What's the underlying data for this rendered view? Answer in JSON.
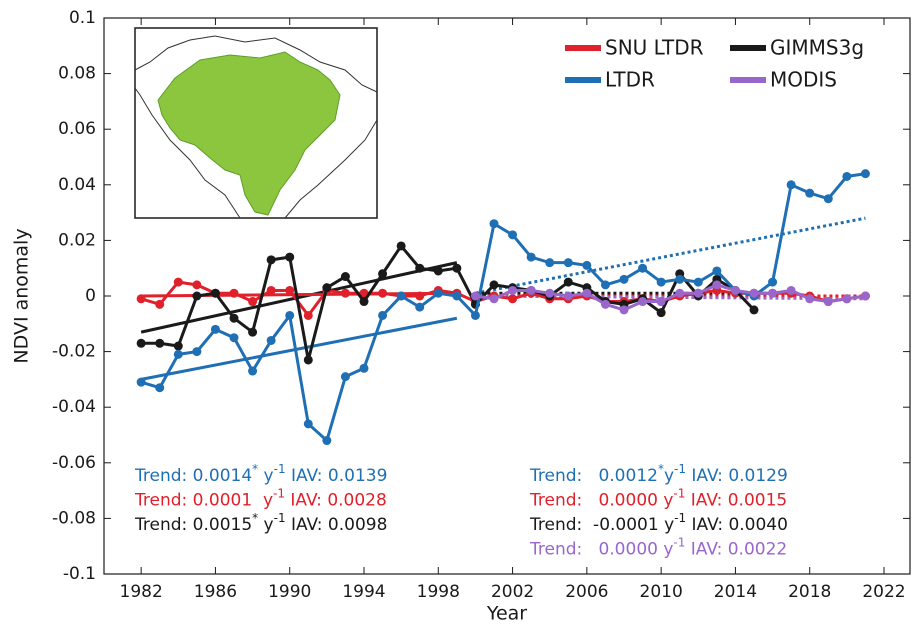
{
  "chart_data": {
    "type": "line",
    "x_label": "Year",
    "y_label": "NDVI anomaly",
    "x": [
      1982,
      1983,
      1984,
      1985,
      1986,
      1987,
      1988,
      1989,
      1990,
      1991,
      1992,
      1993,
      1994,
      1995,
      1996,
      1997,
      1998,
      1999,
      2000,
      2001,
      2002,
      2003,
      2004,
      2005,
      2006,
      2007,
      2008,
      2009,
      2010,
      2011,
      2012,
      2013,
      2014,
      2015,
      2016,
      2017,
      2018,
      2019,
      2020,
      2021
    ],
    "xlim": [
      1980,
      2023.4
    ],
    "xticks": [
      1982,
      1986,
      1990,
      1994,
      1998,
      2002,
      2006,
      2010,
      2014,
      2018,
      2022
    ],
    "ylim": [
      -0.1,
      0.1
    ],
    "yticks": [
      -0.1,
      -0.08,
      -0.06,
      -0.04,
      -0.02,
      0,
      0.02,
      0.04,
      0.06,
      0.08,
      0.1
    ],
    "grid": false,
    "legend_position": "upper right",
    "series": [
      {
        "name": "SNU LTDR",
        "color": "#e0202a",
        "values": [
          -0.001,
          -0.003,
          0.005,
          0.004,
          0.001,
          0.001,
          -0.002,
          0.002,
          0.002,
          -0.007,
          0.002,
          0.001,
          0.001,
          0.001,
          0.0,
          0.0,
          0.002,
          0.001,
          -0.002,
          0.0,
          -0.001,
          0.001,
          -0.001,
          -0.001,
          0.0,
          -0.002,
          -0.002,
          -0.001,
          -0.002,
          0.0,
          0.001,
          0.002,
          0.001,
          0.001,
          0.001,
          0.001,
          0.0,
          -0.002,
          -0.001,
          0.0
        ]
      },
      {
        "name": "GIMMS3g",
        "color": "#1a1a1a",
        "values": [
          -0.017,
          -0.017,
          -0.018,
          0.0,
          0.001,
          -0.008,
          -0.013,
          0.013,
          0.014,
          -0.023,
          0.003,
          0.007,
          -0.002,
          0.008,
          0.018,
          0.01,
          0.009,
          0.01,
          -0.003,
          0.004,
          0.003,
          0.002,
          0.0,
          0.005,
          0.003,
          -0.002,
          -0.003,
          -0.001,
          -0.006,
          0.008,
          0.0,
          0.006,
          0.002,
          -0.005,
          null,
          null,
          null,
          null,
          null,
          null
        ]
      },
      {
        "name": "LTDR",
        "color": "#1f6fb5",
        "values": [
          -0.031,
          -0.033,
          -0.021,
          -0.02,
          -0.012,
          -0.015,
          -0.027,
          -0.016,
          -0.007,
          -0.046,
          -0.052,
          -0.029,
          -0.026,
          -0.007,
          0.0,
          -0.004,
          0.001,
          0.0,
          -0.007,
          0.026,
          0.022,
          0.014,
          0.012,
          0.012,
          0.011,
          0.004,
          0.006,
          0.01,
          0.005,
          0.006,
          0.005,
          0.009,
          0.002,
          0.0,
          0.005,
          0.04,
          0.037,
          0.035,
          0.043,
          0.044
        ]
      },
      {
        "name": "MODIS",
        "color": "#9966cc",
        "values": [
          null,
          null,
          null,
          null,
          null,
          null,
          null,
          null,
          null,
          null,
          null,
          null,
          null,
          null,
          null,
          null,
          null,
          null,
          0.0,
          -0.001,
          0.002,
          0.002,
          0.001,
          0.0,
          0.001,
          -0.003,
          -0.005,
          -0.002,
          -0.002,
          0.001,
          0.001,
          0.004,
          0.002,
          0.001,
          0.001,
          0.002,
          -0.001,
          -0.002,
          -0.001,
          0.0
        ]
      }
    ],
    "trends": [
      {
        "color": "#1f6fb5",
        "style": "solid",
        "x": [
          1982,
          1999
        ],
        "y": [
          -0.03,
          -0.008
        ]
      },
      {
        "color": "#1a1a1a",
        "style": "solid",
        "x": [
          1982,
          1999
        ],
        "y": [
          -0.013,
          0.012
        ]
      },
      {
        "color": "#e0202a",
        "style": "solid",
        "x": [
          1982,
          1999
        ],
        "y": [
          0.0,
          0.001
        ]
      },
      {
        "color": "#1f6fb5",
        "style": "dotted",
        "x": [
          2000,
          2021
        ],
        "y": [
          0.001,
          0.028
        ]
      },
      {
        "color": "#1a1a1a",
        "style": "dotted",
        "x": [
          2000,
          2015
        ],
        "y": [
          0.001,
          0.001
        ]
      },
      {
        "color": "#e0202a",
        "style": "dotted",
        "x": [
          2000,
          2021
        ],
        "y": [
          0.0,
          0.0
        ]
      },
      {
        "color": "#9966cc",
        "style": "dotted",
        "x": [
          2000,
          2021
        ],
        "y": [
          0.0,
          -0.001
        ]
      }
    ],
    "annotations": [
      {
        "color": "#1f6fb5",
        "block": "left",
        "parts": [
          {
            "text": "Trend: 0.0014"
          },
          {
            "text": "*",
            "sup": true
          },
          {
            "text": " y"
          },
          {
            "text": "-1",
            "sup": true
          },
          {
            "text": " IAV: 0.0139"
          }
        ]
      },
      {
        "color": "#e0202a",
        "block": "left",
        "parts": [
          {
            "text": "Trend: 0.0001  y"
          },
          {
            "text": "-1",
            "sup": true
          },
          {
            "text": " IAV: 0.0028"
          }
        ]
      },
      {
        "color": "#1a1a1a",
        "block": "left",
        "parts": [
          {
            "text": "Trend: 0.0015"
          },
          {
            "text": "*",
            "sup": true
          },
          {
            "text": " y"
          },
          {
            "text": "-1",
            "sup": true
          },
          {
            "text": " IAV: 0.0098"
          }
        ]
      },
      {
        "color": "#1f6fb5",
        "block": "right",
        "parts": [
          {
            "text": "Trend:   0.0012"
          },
          {
            "text": "*",
            "sup": true
          },
          {
            "text": "y"
          },
          {
            "text": "-1",
            "sup": true
          },
          {
            "text": " IAV: 0.0129"
          }
        ]
      },
      {
        "color": "#e0202a",
        "block": "right",
        "parts": [
          {
            "text": "Trend:   0.0000 y"
          },
          {
            "text": "-1",
            "sup": true
          },
          {
            "text": " IAV: 0.0015"
          }
        ]
      },
      {
        "color": "#1a1a1a",
        "block": "right",
        "parts": [
          {
            "text": "Trend:  -0.0001 y"
          },
          {
            "text": "-1",
            "sup": true
          },
          {
            "text": " IAV: 0.0040"
          }
        ]
      },
      {
        "color": "#9966cc",
        "block": "right",
        "parts": [
          {
            "text": "Trend:   0.0000 y"
          },
          {
            "text": "-1",
            "sup": true
          },
          {
            "text": " IAV: 0.0022"
          }
        ]
      }
    ]
  }
}
